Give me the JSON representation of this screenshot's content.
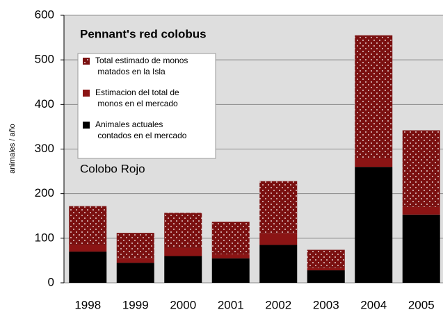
{
  "chart_data": {
    "type": "stacked_bar",
    "title": "Pennant's red colobus",
    "annotation": "Colobo Rojo",
    "y_label": "animales / año",
    "categories": [
      "1998",
      "1999",
      "2000",
      "2001",
      "2002",
      "2003",
      "2004",
      "2005"
    ],
    "series": [
      {
        "name": "Animales actuales contados en el mercado",
        "color": "#000000",
        "values": [
          70,
          45,
          60,
          55,
          85,
          28,
          260,
          153
        ]
      },
      {
        "name": "Estimacion del total de monos en el mercado",
        "color": "#8b1414",
        "values": [
          15,
          10,
          18,
          9,
          26,
          5,
          19,
          17
        ]
      },
      {
        "name": "Total estimado de monos matados en la Isla",
        "color": "#7a1010",
        "pattern": "dots",
        "values": [
          87,
          57,
          79,
          73,
          117,
          41,
          276,
          172
        ]
      }
    ],
    "ylim": [
      0,
      600
    ],
    "yticks": [
      0,
      100,
      200,
      300,
      400,
      500,
      600
    ],
    "grid": true
  }
}
